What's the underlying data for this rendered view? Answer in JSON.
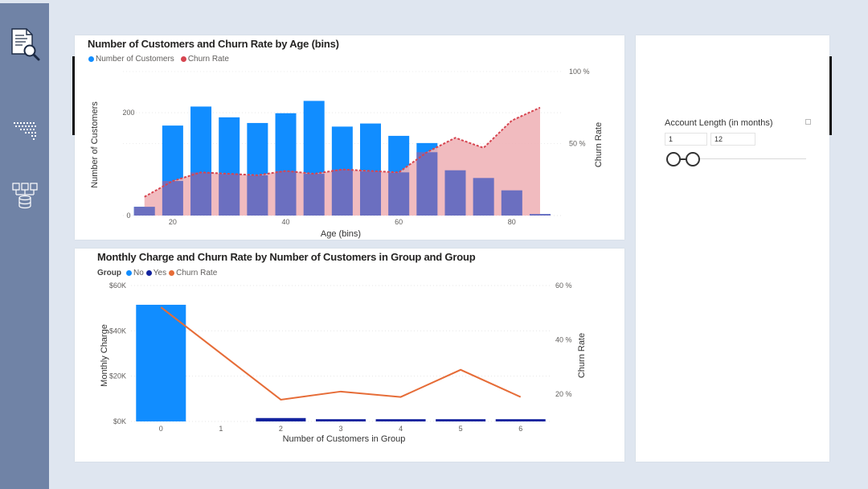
{
  "sidebar": {
    "items": [
      {
        "icon": "document-search-icon"
      },
      {
        "icon": "map-icon"
      },
      {
        "icon": "database-network-icon"
      }
    ]
  },
  "colors": {
    "customers": "#118dff",
    "churn_age_line": "#d64550",
    "churn_age_area": "#f0b4b8",
    "overlap": "#6b6fc0",
    "group_no": "#118dff",
    "group_yes": "#12239e",
    "churn_group": "#e66c37"
  },
  "slicer": {
    "title": "Account Length (in months)",
    "min_value": "1",
    "max_value": "12",
    "range": [
      1,
      12
    ]
  },
  "chart_data": [
    {
      "type": "bar",
      "title": "Number of Customers and Churn Rate by Age (bins)",
      "legend_placement": "top-left",
      "legend": [
        "Number of Customers",
        "Churn Rate"
      ],
      "xlabel": "Age (bins)",
      "ylabel": "Number of Customers",
      "y2label": "Churn Rate",
      "x": [
        15,
        20,
        25,
        30,
        35,
        40,
        45,
        50,
        55,
        60,
        65,
        70,
        75,
        80,
        85
      ],
      "xticks": [
        "20",
        "40",
        "60",
        "80"
      ],
      "xtick_values": [
        20,
        40,
        60,
        80
      ],
      "xlim": [
        11.2,
        88.7
      ],
      "yticks": [
        "0",
        "200"
      ],
      "ytick_values": [
        0,
        200
      ],
      "ylim": [
        0,
        280
      ],
      "y2ticks": [
        "50 %",
        "100 %"
      ],
      "y2tick_values": [
        50,
        100
      ],
      "y2lim": [
        0,
        100
      ],
      "grid": true,
      "series": [
        {
          "name": "Number of Customers",
          "kind": "bar",
          "values": [
            17,
            175,
            212,
            191,
            180,
            199,
            223,
            173,
            179,
            155,
            141,
            88,
            73,
            49,
            3
          ]
        },
        {
          "name": "Churn Rate",
          "kind": "area-line",
          "values": [
            13,
            24,
            30,
            29,
            28,
            31,
            29,
            32,
            31,
            30,
            44,
            54,
            47,
            66,
            75
          ]
        }
      ]
    },
    {
      "type": "bar",
      "title": "Monthly Charge and Churn Rate by Number of Customers in Group and Group",
      "legend_title": "Group",
      "legend": [
        "No",
        "Yes",
        "Churn Rate"
      ],
      "legend_placement": "top-left",
      "xlabel": "Number of Customers in Group",
      "ylabel": "Monthly Charge",
      "y2label": "Churn Rate",
      "categories": [
        "0",
        "1",
        "2",
        "3",
        "4",
        "5",
        "6"
      ],
      "yticks": [
        "$0K",
        "$20K",
        "$40K",
        "$60K"
      ],
      "ytick_values": [
        0,
        20000,
        40000,
        60000
      ],
      "ylim": [
        0,
        60000
      ],
      "y2ticks": [
        "20 %",
        "40 %",
        "60 %"
      ],
      "y2tick_values": [
        20,
        40,
        60
      ],
      "y2lim": [
        10,
        60
      ],
      "grid": true,
      "series": [
        {
          "name": "No",
          "kind": "bar",
          "values": [
            51500,
            0,
            0,
            0,
            0,
            0,
            0
          ]
        },
        {
          "name": "Yes",
          "kind": "bar",
          "values": [
            0,
            0,
            1500,
            1000,
            1000,
            1000,
            1000
          ]
        },
        {
          "name": "Churn Rate",
          "kind": "line",
          "values": [
            52,
            null,
            18,
            21,
            19,
            29,
            19
          ]
        }
      ]
    }
  ]
}
